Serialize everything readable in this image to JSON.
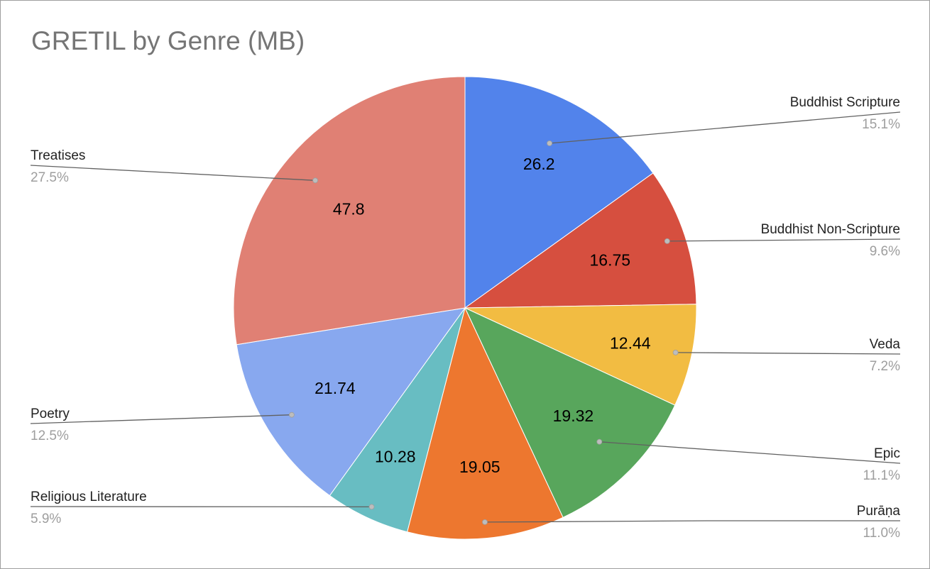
{
  "chart_data": {
    "type": "pie",
    "title": "GRETIL by Genre (MB)",
    "slices": [
      {
        "name": "Buddhist Scripture",
        "value": 26.2,
        "value_label": "26.2",
        "percent_label": "15.1%",
        "color": "#5283eb"
      },
      {
        "name": "Buddhist Non-Scripture",
        "value": 16.75,
        "value_label": "16.75",
        "percent_label": "9.6%",
        "color": "#d64f3f"
      },
      {
        "name": "Veda",
        "value": 12.44,
        "value_label": "12.44",
        "percent_label": "7.2%",
        "color": "#f2bc42"
      },
      {
        "name": "Epic",
        "value": 19.32,
        "value_label": "19.32",
        "percent_label": "11.1%",
        "color": "#58a65c"
      },
      {
        "name": "Purāṇa",
        "value": 19.05,
        "value_label": "19.05",
        "percent_label": "11.0%",
        "color": "#ed772f"
      },
      {
        "name": "Religious Literature",
        "value": 10.28,
        "value_label": "10.28",
        "percent_label": "5.9%",
        "color": "#68bdc2"
      },
      {
        "name": "Poetry",
        "value": 21.74,
        "value_label": "21.74",
        "percent_label": "12.5%",
        "color": "#88a8ef"
      },
      {
        "name": "Treatises",
        "value": 47.8,
        "value_label": "47.8",
        "percent_label": "27.5%",
        "color": "#e08074"
      }
    ],
    "start_angle": "12 o'clock",
    "direction": "clockwise",
    "legend": "callout-labels"
  }
}
